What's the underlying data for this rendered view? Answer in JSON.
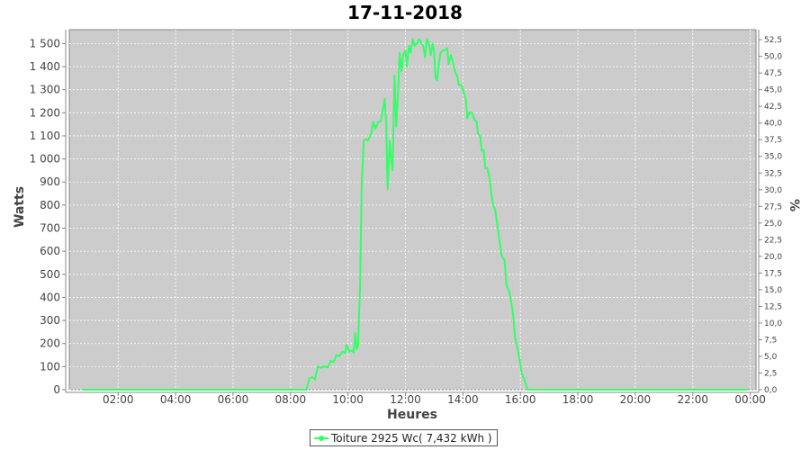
{
  "chart_data": {
    "type": "line",
    "title": "17-11-2018",
    "xlabel": "Heures",
    "ylabel": "Watts",
    "y2label": "%",
    "xlim": [
      0.3,
      24.2
    ],
    "ylim": [
      0,
      1560
    ],
    "y2lim": [
      0,
      54.0
    ],
    "x_ticks": [
      {
        "value": 2,
        "label": "02:00"
      },
      {
        "value": 4,
        "label": "04:00"
      },
      {
        "value": 6,
        "label": "06:00"
      },
      {
        "value": 8,
        "label": "08:00"
      },
      {
        "value": 10,
        "label": "10:00"
      },
      {
        "value": 12,
        "label": "12:00"
      },
      {
        "value": 14,
        "label": "14:00"
      },
      {
        "value": 16,
        "label": "16:00"
      },
      {
        "value": 18,
        "label": "18:00"
      },
      {
        "value": 20,
        "label": "20:00"
      },
      {
        "value": 22,
        "label": "22:00"
      },
      {
        "value": 24,
        "label": "00:00"
      }
    ],
    "y_ticks": [
      {
        "value": 0,
        "label": "0"
      },
      {
        "value": 100,
        "label": "100"
      },
      {
        "value": 200,
        "label": "200"
      },
      {
        "value": 300,
        "label": "300"
      },
      {
        "value": 400,
        "label": "400"
      },
      {
        "value": 500,
        "label": "500"
      },
      {
        "value": 600,
        "label": "600"
      },
      {
        "value": 700,
        "label": "700"
      },
      {
        "value": 800,
        "label": "800"
      },
      {
        "value": 900,
        "label": "900"
      },
      {
        "value": 1000,
        "label": "1 000"
      },
      {
        "value": 1100,
        "label": "1 100"
      },
      {
        "value": 1200,
        "label": "1 200"
      },
      {
        "value": 1300,
        "label": "1 300"
      },
      {
        "value": 1400,
        "label": "1 400"
      },
      {
        "value": 1500,
        "label": "1 500"
      }
    ],
    "y2_ticks": [
      {
        "value": 0,
        "label": "0,0"
      },
      {
        "value": 2.5,
        "label": "2,5"
      },
      {
        "value": 5,
        "label": "5,0"
      },
      {
        "value": 7.5,
        "label": "7,5"
      },
      {
        "value": 10,
        "label": "10,0"
      },
      {
        "value": 12.5,
        "label": "12,5"
      },
      {
        "value": 15,
        "label": "15,0"
      },
      {
        "value": 17.5,
        "label": "17,5"
      },
      {
        "value": 20,
        "label": "20,0"
      },
      {
        "value": 22.5,
        "label": "22,5"
      },
      {
        "value": 25,
        "label": "25,0"
      },
      {
        "value": 27.5,
        "label": "27,5"
      },
      {
        "value": 30,
        "label": "30,0"
      },
      {
        "value": 32.5,
        "label": "32,5"
      },
      {
        "value": 35,
        "label": "35,0"
      },
      {
        "value": 37.5,
        "label": "37,5"
      },
      {
        "value": 40,
        "label": "40,0"
      },
      {
        "value": 42.5,
        "label": "42,5"
      },
      {
        "value": 45,
        "label": "45,0"
      },
      {
        "value": 47.5,
        "label": "47,5"
      },
      {
        "value": 50,
        "label": "50,0"
      },
      {
        "value": 52.5,
        "label": "52,5"
      }
    ],
    "grid": true,
    "legend_position": "bottom-center",
    "plot_background": "#cccccc",
    "series": [
      {
        "name": "Toiture 2925 Wc( 7,432 kWh )",
        "color": "#33ff66",
        "points": [
          [
            0.75,
            0
          ],
          [
            4.0,
            0
          ],
          [
            8.0,
            0
          ],
          [
            8.55,
            0
          ],
          [
            8.65,
            48
          ],
          [
            8.75,
            55
          ],
          [
            8.85,
            45
          ],
          [
            8.95,
            100
          ],
          [
            9.05,
            95
          ],
          [
            9.15,
            100
          ],
          [
            9.3,
            97
          ],
          [
            9.4,
            125
          ],
          [
            9.5,
            120
          ],
          [
            9.6,
            150
          ],
          [
            9.7,
            145
          ],
          [
            9.8,
            165
          ],
          [
            9.9,
            160
          ],
          [
            9.95,
            195
          ],
          [
            10.05,
            165
          ],
          [
            10.15,
            170
          ],
          [
            10.2,
            160
          ],
          [
            10.25,
            245
          ],
          [
            10.3,
            175
          ],
          [
            10.35,
            190
          ],
          [
            10.42,
            450
          ],
          [
            10.48,
            900
          ],
          [
            10.55,
            1080
          ],
          [
            10.62,
            1085
          ],
          [
            10.7,
            1080
          ],
          [
            10.8,
            1110
          ],
          [
            10.88,
            1160
          ],
          [
            10.95,
            1130
          ],
          [
            11.05,
            1160
          ],
          [
            11.15,
            1165
          ],
          [
            11.22,
            1220
          ],
          [
            11.28,
            1260
          ],
          [
            11.33,
            1150
          ],
          [
            11.38,
            870
          ],
          [
            11.45,
            1080
          ],
          [
            11.5,
            1000
          ],
          [
            11.55,
            950
          ],
          [
            11.62,
            1360
          ],
          [
            11.68,
            1140
          ],
          [
            11.75,
            1310
          ],
          [
            11.8,
            1460
          ],
          [
            11.86,
            1380
          ],
          [
            11.92,
            1450
          ],
          [
            12.0,
            1470
          ],
          [
            12.05,
            1400
          ],
          [
            12.12,
            1490
          ],
          [
            12.18,
            1460
          ],
          [
            12.25,
            1520
          ],
          [
            12.32,
            1490
          ],
          [
            12.4,
            1500
          ],
          [
            12.48,
            1520
          ],
          [
            12.55,
            1500
          ],
          [
            12.62,
            1490
          ],
          [
            12.68,
            1440
          ],
          [
            12.75,
            1520
          ],
          [
            12.82,
            1500
          ],
          [
            12.88,
            1450
          ],
          [
            12.95,
            1500
          ],
          [
            13.0,
            1460
          ],
          [
            13.05,
            1350
          ],
          [
            13.1,
            1340
          ],
          [
            13.15,
            1400
          ],
          [
            13.22,
            1460
          ],
          [
            13.3,
            1470
          ],
          [
            13.38,
            1470
          ],
          [
            13.45,
            1480
          ],
          [
            13.5,
            1410
          ],
          [
            13.58,
            1450
          ],
          [
            13.65,
            1420
          ],
          [
            13.72,
            1380
          ],
          [
            13.8,
            1360
          ],
          [
            13.85,
            1320
          ],
          [
            13.95,
            1320
          ],
          [
            14.02,
            1290
          ],
          [
            14.1,
            1260
          ],
          [
            14.15,
            1175
          ],
          [
            14.22,
            1200
          ],
          [
            14.32,
            1200
          ],
          [
            14.4,
            1170
          ],
          [
            14.48,
            1160
          ],
          [
            14.52,
            1110
          ],
          [
            14.6,
            1100
          ],
          [
            14.65,
            1035
          ],
          [
            14.72,
            1040
          ],
          [
            14.78,
            960
          ],
          [
            14.85,
            960
          ],
          [
            14.92,
            920
          ],
          [
            15.0,
            840
          ],
          [
            15.05,
            800
          ],
          [
            15.12,
            780
          ],
          [
            15.2,
            710
          ],
          [
            15.28,
            640
          ],
          [
            15.35,
            580
          ],
          [
            15.45,
            560
          ],
          [
            15.52,
            450
          ],
          [
            15.6,
            430
          ],
          [
            15.68,
            380
          ],
          [
            15.75,
            320
          ],
          [
            15.82,
            220
          ],
          [
            15.9,
            180
          ],
          [
            16.0,
            110
          ],
          [
            16.05,
            70
          ],
          [
            16.15,
            40
          ],
          [
            16.25,
            0
          ],
          [
            17.0,
            0
          ],
          [
            20.0,
            0
          ],
          [
            23.9,
            0
          ]
        ]
      }
    ]
  }
}
